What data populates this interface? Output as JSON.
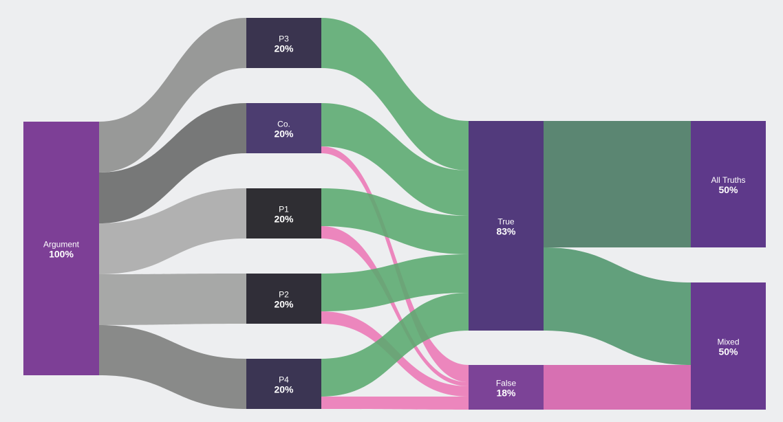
{
  "diagram": {
    "type": "sankey",
    "nodes": {
      "argument": {
        "name": "Argument",
        "value": "100%",
        "color": "#7d3f96"
      },
      "p3": {
        "name": "P3",
        "value": "20%",
        "color": "#3a344f"
      },
      "co": {
        "name": "Co.",
        "value": "20%",
        "color": "#4c3d70"
      },
      "p1": {
        "name": "P1",
        "value": "20%",
        "color": "#2f2e33"
      },
      "p2": {
        "name": "P2",
        "value": "20%",
        "color": "#302e38"
      },
      "p4": {
        "name": "P4",
        "value": "20%",
        "color": "#3b3553"
      },
      "true": {
        "name": "True",
        "value": "83%",
        "color": "#523a7c"
      },
      "false": {
        "name": "False",
        "value": "18%",
        "color": "#7c4397"
      },
      "all_truths": {
        "name": "All Truths",
        "value": "50%",
        "color": "#5e398a"
      },
      "mixed": {
        "name": "Mixed",
        "value": "50%",
        "color": "#673a8f"
      }
    },
    "links": [
      {
        "source": "Argument",
        "target": "P3",
        "color": "#8c8d8b"
      },
      {
        "source": "Argument",
        "target": "Co.",
        "color": "#676866"
      },
      {
        "source": "Argument",
        "target": "P1",
        "color": "#a8a9a7"
      },
      {
        "source": "Argument",
        "target": "P2",
        "color": "#9d9e9c"
      },
      {
        "source": "Argument",
        "target": "P4",
        "color": "#7b7c7a"
      },
      {
        "source": "P3",
        "target": "True",
        "color": "#5aaa6e"
      },
      {
        "source": "Co.",
        "target": "True",
        "color": "#5aaa6e"
      },
      {
        "source": "Co.",
        "target": "False",
        "color": "#ec78b5"
      },
      {
        "source": "P1",
        "target": "True",
        "color": "#5aaa6e"
      },
      {
        "source": "P1",
        "target": "False",
        "color": "#ec78b5"
      },
      {
        "source": "P2",
        "target": "True",
        "color": "#5aaa6e"
      },
      {
        "source": "P2",
        "target": "False",
        "color": "#ec78b5"
      },
      {
        "source": "P4",
        "target": "True",
        "color": "#5aaa6e"
      },
      {
        "source": "P4",
        "target": "False",
        "color": "#ec78b5"
      },
      {
        "source": "True",
        "target": "All Truths",
        "color": "#477860"
      },
      {
        "source": "True",
        "target": "Mixed",
        "color": "#4f956b"
      },
      {
        "source": "False",
        "target": "Mixed",
        "color": "#d45fa8"
      }
    ]
  }
}
